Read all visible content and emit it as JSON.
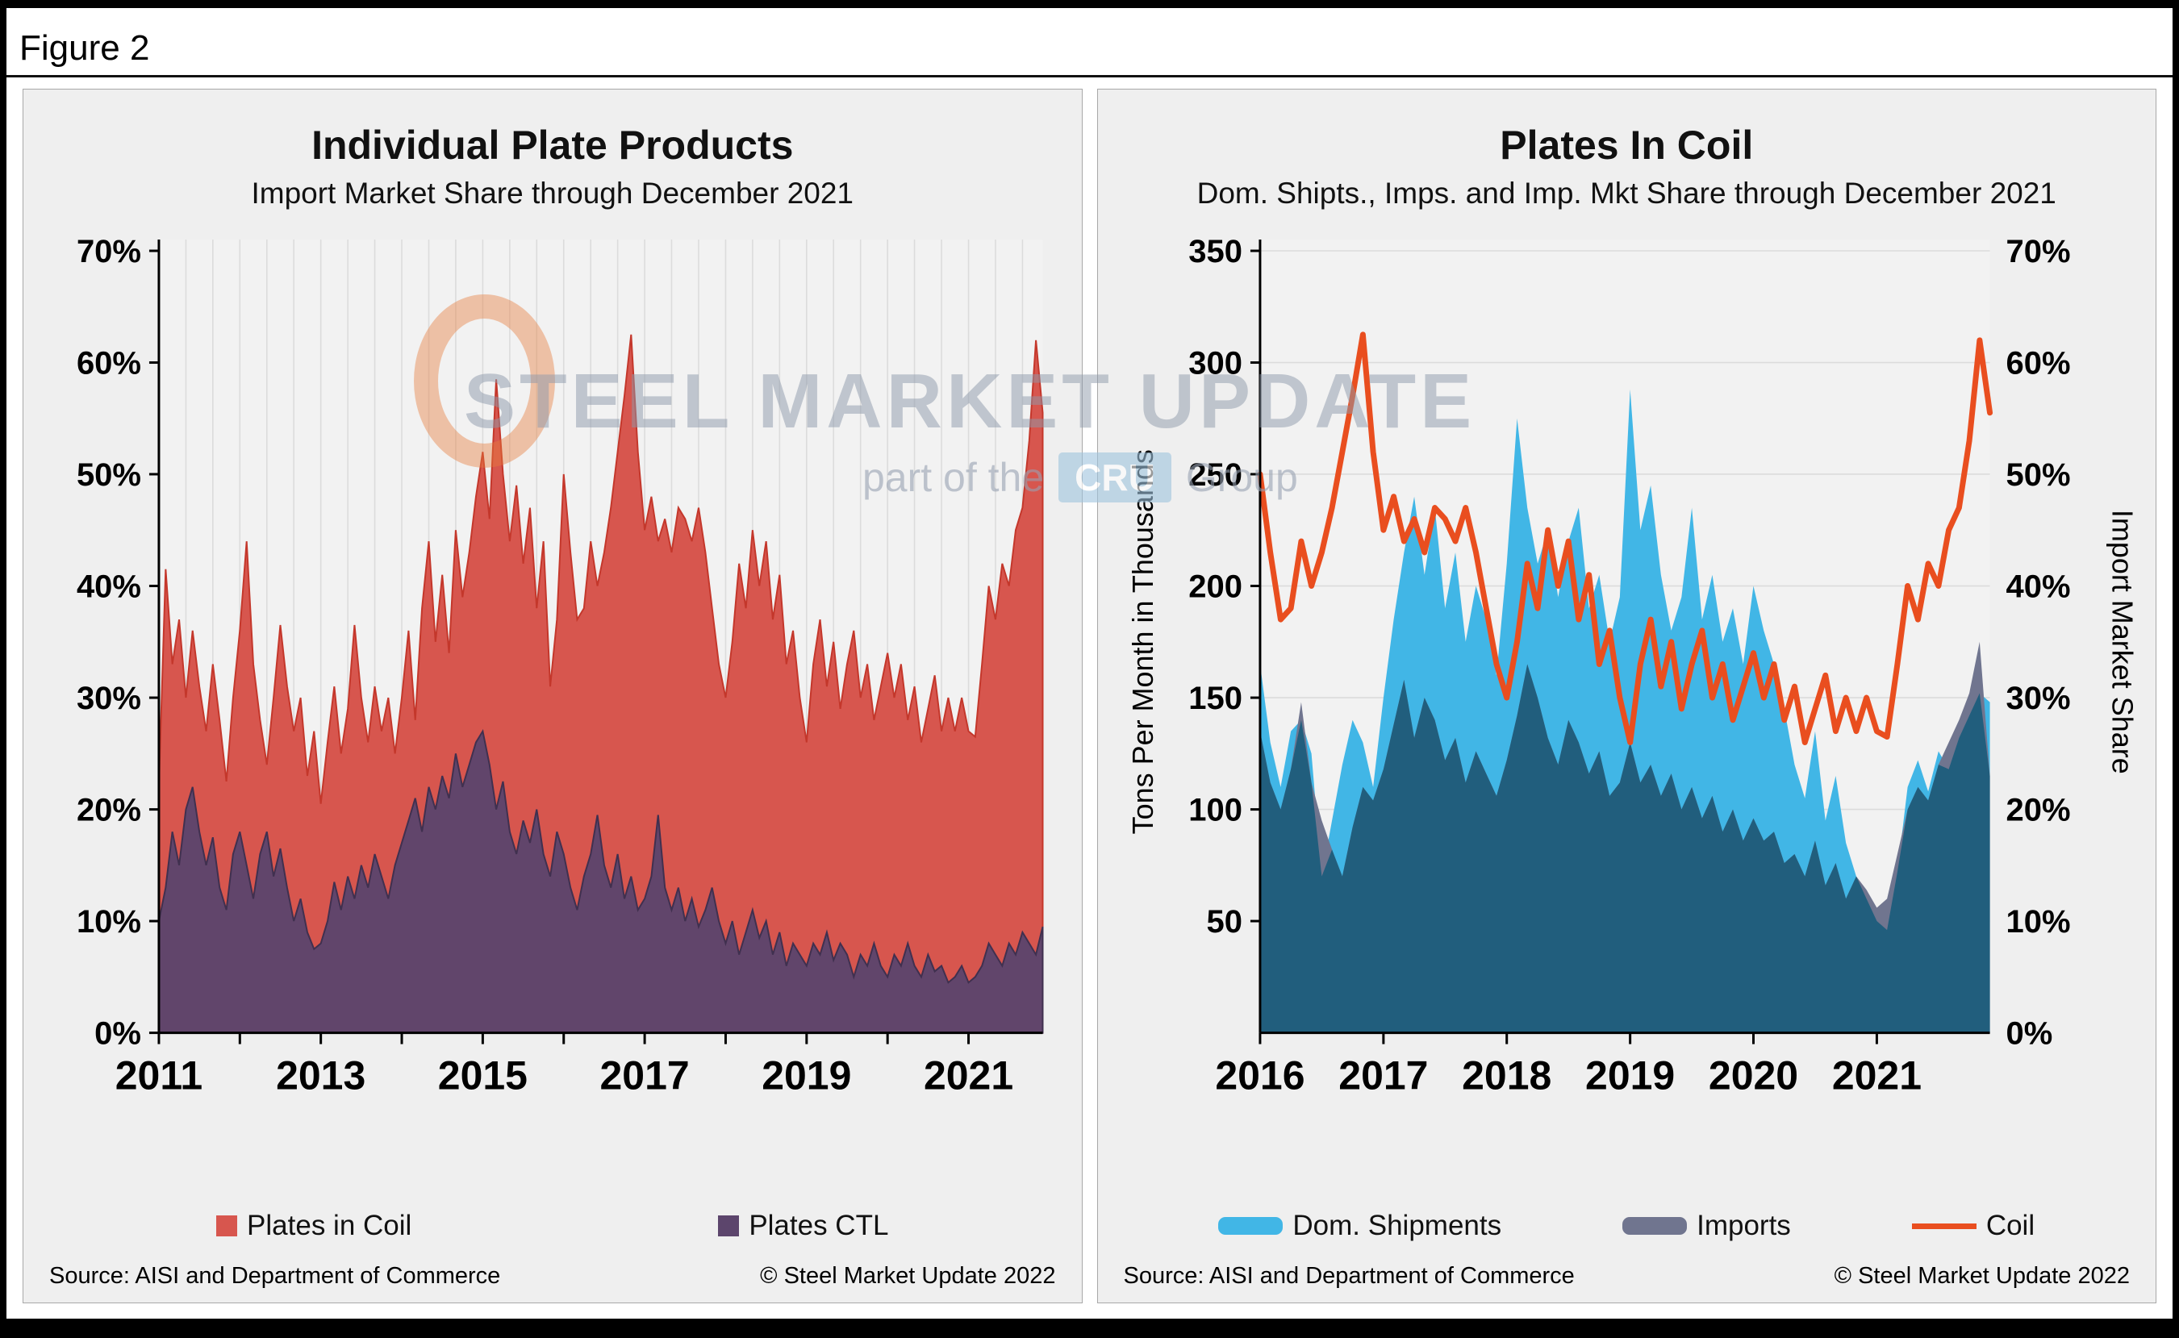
{
  "figure_label": "Figure 2",
  "watermark": {
    "title": "STEEL MARKET UPDATE",
    "subtitle_prefix": "part of the",
    "cru": "CRU",
    "group": "Group"
  },
  "chart_data": [
    {
      "type": "area",
      "title": "Individual Plate Products",
      "subtitle": "Import Market Share through December 2021",
      "x_monthly_start": "2011-01",
      "x_monthly_end": "2021-12",
      "x_tick_labels": [
        "2011",
        "2013",
        "2015",
        "2017",
        "2019",
        "2021"
      ],
      "y_axis": {
        "min": 0,
        "max": 70,
        "tick_step": 10,
        "format": "percent"
      },
      "plot_bg": "#F2F2F2",
      "grid_color": "#DCDCDC",
      "grid": "vertical",
      "legend_position": "bottom",
      "series": [
        {
          "name": "Plates in Coil",
          "color": "#D7564E",
          "stroke": "#C4372B",
          "values": [
            22,
            41.5,
            33,
            37,
            30,
            36,
            31,
            27,
            33,
            28,
            22.5,
            30,
            36,
            44,
            33,
            28,
            24,
            30,
            36.5,
            31,
            27,
            30,
            23,
            27,
            20.5,
            26,
            31,
            25,
            29,
            36.5,
            30,
            26,
            31,
            27,
            30,
            25,
            30,
            36,
            28,
            38,
            44,
            35,
            41,
            34,
            45,
            39,
            43,
            48,
            52,
            46,
            58.5,
            50,
            44,
            49,
            42,
            47,
            38,
            44,
            31,
            37,
            50,
            43,
            37,
            38,
            44,
            40,
            43,
            47,
            52,
            57,
            62.5,
            52,
            45,
            48,
            44,
            46,
            43,
            47,
            46,
            44,
            47,
            43,
            38,
            33,
            30,
            35,
            42,
            38,
            45,
            40,
            44,
            37,
            41,
            33,
            36,
            30,
            26,
            33,
            37,
            31,
            35,
            29,
            33,
            36,
            30,
            33,
            28,
            31,
            34,
            30,
            33,
            28,
            31,
            26,
            29,
            32,
            27,
            30,
            27,
            30,
            27,
            26.5,
            33,
            40,
            37,
            42,
            40,
            45,
            47,
            53,
            62,
            55.5
          ]
        },
        {
          "name": "Plates CTL",
          "color": "#5C456C",
          "stroke": "#40304F",
          "values": [
            10,
            13,
            18,
            15,
            20,
            22,
            18,
            15,
            17.5,
            13,
            11,
            16,
            18,
            15,
            12,
            16,
            18,
            14,
            16.5,
            13,
            10,
            12,
            9,
            7.5,
            8,
            10,
            13.5,
            11,
            14,
            12,
            15,
            13,
            16,
            14,
            12,
            15,
            17,
            19,
            21,
            18,
            22,
            20,
            23,
            21,
            25,
            22,
            24,
            26,
            27,
            24,
            20,
            22.5,
            18,
            16,
            19,
            17,
            20,
            16,
            14,
            18,
            16,
            13,
            11,
            14,
            16,
            19.5,
            15,
            13,
            16,
            12,
            14,
            11,
            12,
            14,
            19.5,
            13,
            11,
            13,
            10,
            12,
            9.5,
            11,
            13,
            10,
            8,
            10,
            7,
            9,
            11,
            8.5,
            10,
            7,
            9,
            6,
            8,
            7,
            6,
            8,
            7,
            9,
            6.5,
            8,
            7,
            5,
            7,
            6,
            8,
            6,
            5,
            7,
            6,
            8,
            6,
            5,
            7,
            5.5,
            6,
            4.5,
            5,
            6,
            4.5,
            5,
            6,
            8,
            7,
            6,
            8,
            7,
            9,
            8,
            7,
            9.5
          ]
        }
      ],
      "footer_left": "Source: AISI and Department of Commerce",
      "footer_right": "© Steel Market Update 2022"
    },
    {
      "type": "combo",
      "title": "Plates In Coil",
      "subtitle": "Dom. Shipts., Imps. and Imp. Mkt Share through December 2021",
      "x_monthly_start": "2016-01",
      "x_monthly_end": "2021-12",
      "x_tick_labels": [
        "2016",
        "2017",
        "2018",
        "2019",
        "2020",
        "2021"
      ],
      "y_left": {
        "label": "Tons Per Month in Thousands",
        "min": 0,
        "max": 350,
        "tick_step": 50
      },
      "y_right": {
        "label": "Import Market Share",
        "min": 0,
        "max": 70,
        "tick_step": 10,
        "format": "percent"
      },
      "plot_bg": "#F2F2F2",
      "grid_color": "#DBDBDB",
      "grid": "horizontal",
      "overlap_color": "#215E7D",
      "legend_position": "bottom",
      "series": [
        {
          "name": "Dom. Shipments",
          "kind": "area",
          "axis": "left",
          "color": "#41B6E6",
          "values": [
            165,
            130,
            110,
            135,
            140,
            125,
            70,
            95,
            120,
            140,
            130,
            110,
            150,
            185,
            215,
            240,
            205,
            235,
            190,
            215,
            175,
            200,
            185,
            160,
            210,
            275,
            235,
            210,
            225,
            195,
            220,
            235,
            190,
            205,
            175,
            195,
            288,
            225,
            245,
            205,
            180,
            195,
            235,
            185,
            205,
            175,
            190,
            165,
            200,
            180,
            165,
            145,
            120,
            105,
            135,
            95,
            115,
            85,
            70,
            60,
            50,
            46,
            72,
            110,
            122,
            108,
            126,
            118,
            132,
            142,
            152,
            148
          ]
        },
        {
          "name": "Imports",
          "kind": "area",
          "axis": "left",
          "color": "#70758F",
          "values": [
            135,
            112,
            100,
            118,
            148,
            112,
            95,
            82,
            70,
            92,
            110,
            104,
            118,
            138,
            158,
            132,
            150,
            140,
            122,
            132,
            112,
            126,
            116,
            106,
            122,
            142,
            165,
            150,
            132,
            120,
            140,
            130,
            116,
            126,
            106,
            112,
            130,
            112,
            120,
            106,
            116,
            100,
            110,
            96,
            106,
            90,
            100,
            86,
            96,
            86,
            90,
            76,
            80,
            70,
            86,
            66,
            76,
            60,
            70,
            64,
            56,
            60,
            80,
            100,
            110,
            104,
            120,
            130,
            140,
            152,
            175,
            115
          ]
        },
        {
          "name": "Coil",
          "kind": "line",
          "axis": "right",
          "color": "#E94E1F",
          "values": [
            50,
            43,
            37,
            38,
            44,
            40,
            43,
            47,
            52,
            57,
            62.5,
            52,
            45,
            48,
            44,
            46,
            43,
            47,
            46,
            44,
            47,
            43,
            38,
            33,
            30,
            35,
            42,
            38,
            45,
            40,
            44,
            37,
            41,
            33,
            36,
            30,
            26,
            33,
            37,
            31,
            35,
            29,
            33,
            36,
            30,
            33,
            28,
            31,
            34,
            30,
            33,
            28,
            31,
            26,
            29,
            32,
            27,
            30,
            27,
            30,
            27,
            26.5,
            33,
            40,
            37,
            42,
            40,
            45,
            47,
            53,
            62,
            55.5
          ]
        }
      ],
      "footer_left": "Source: AISI and Department of Commerce",
      "footer_right": "© Steel Market Update 2022"
    }
  ]
}
